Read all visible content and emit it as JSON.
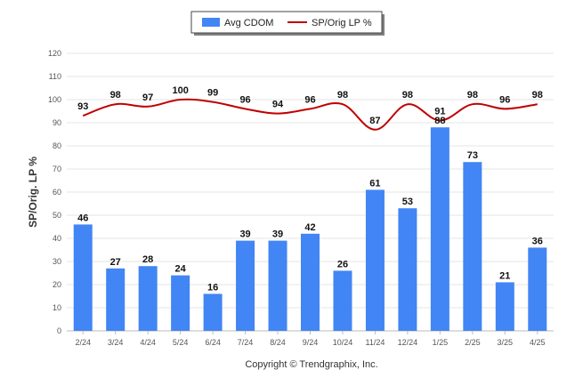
{
  "chart_data": {
    "type": "bar",
    "categories": [
      "2/24",
      "3/24",
      "4/24",
      "5/24",
      "6/24",
      "7/24",
      "8/24",
      "9/24",
      "10/24",
      "11/24",
      "12/24",
      "1/25",
      "2/25",
      "3/25",
      "4/25"
    ],
    "series": [
      {
        "name": "Avg CDOM",
        "type": "bar",
        "color": "#4285f4",
        "values": [
          46,
          27,
          28,
          24,
          16,
          39,
          39,
          42,
          26,
          61,
          53,
          88,
          73,
          21,
          36
        ]
      },
      {
        "name": "SP/Orig LP %",
        "type": "line",
        "color": "#c00000",
        "values": [
          93,
          98,
          97,
          100,
          99,
          96,
          94,
          96,
          98,
          87,
          98,
          91,
          98,
          96,
          98
        ]
      }
    ],
    "ylabel": "SP/Orig. LP %",
    "ylim": [
      0,
      120
    ],
    "yticks": [
      0,
      10,
      20,
      30,
      40,
      50,
      60,
      70,
      80,
      90,
      100,
      110,
      120
    ],
    "grid": true,
    "legend": "top-center",
    "credit": "Copyright © Trendgraphix, Inc."
  }
}
